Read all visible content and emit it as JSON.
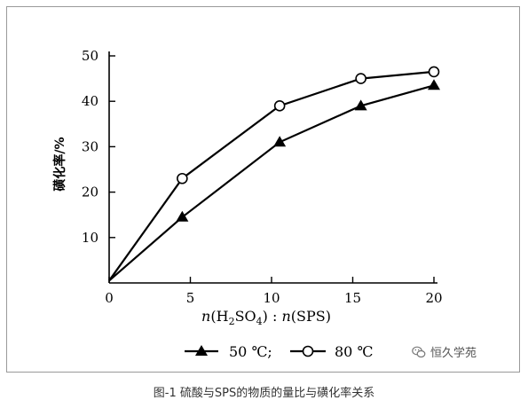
{
  "chart_data": {
    "type": "line",
    "title": "",
    "ylabel": "磺化率/%",
    "xlabel_parts": {
      "n1": "n",
      "open": "(H",
      "sub2": "2",
      "mid": "SO",
      "sub4": "4",
      "close": ") : ",
      "n2": "n",
      "end": "(SPS)"
    },
    "xlim": [
      0,
      20
    ],
    "ylim": [
      0,
      50
    ],
    "xticks": [
      0,
      5,
      10,
      15,
      20
    ],
    "yticks": [
      10,
      20,
      30,
      40,
      50
    ],
    "xtick_labels": [
      "0",
      "5",
      "10",
      "15",
      "20"
    ],
    "ytick_labels": [
      "10",
      "20",
      "30",
      "40",
      "50"
    ],
    "grid": false,
    "legend_position": "bottom",
    "series": [
      {
        "name": "50 ℃;",
        "marker": "triangle",
        "x": [
          0,
          4.5,
          10.5,
          15.5,
          20
        ],
        "y": [
          0.5,
          14.5,
          31,
          39,
          43.5
        ]
      },
      {
        "name": "80 ℃",
        "marker": "circle",
        "x": [
          0,
          4.5,
          10.5,
          15.5,
          20
        ],
        "y": [
          0.5,
          23,
          39,
          45,
          46.5
        ]
      }
    ]
  },
  "watermark": {
    "text": "恒久学苑",
    "icon": "wechat-icon"
  },
  "caption": "图-1   硫酸与SPS的物质的量比与磺化率关系"
}
